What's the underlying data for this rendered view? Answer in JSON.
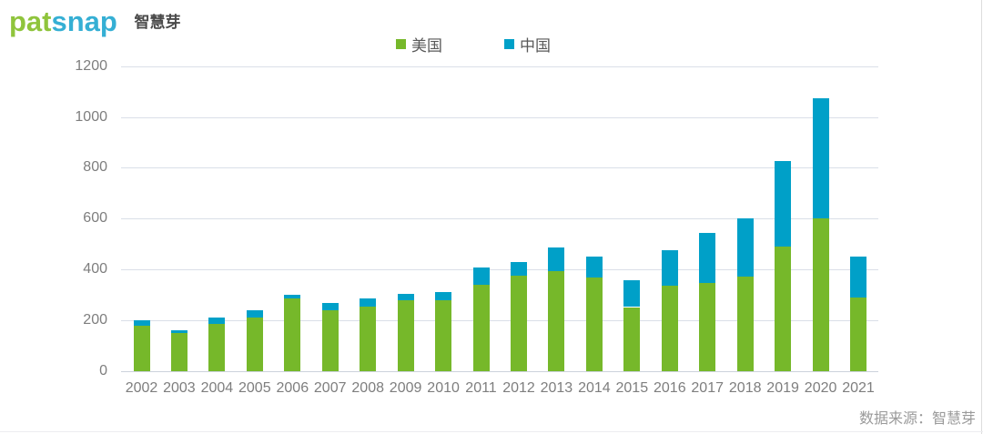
{
  "logo": {
    "part_green": "pat",
    "part_blue": "snap",
    "suffix": "智慧芽"
  },
  "colors": {
    "us_green": "#76B82A",
    "cn_blue": "#00A0C8",
    "logo_green": "#8FC43C",
    "logo_blue": "#35AFD4",
    "grid": "#dadfe8",
    "axis_text": "#7e7e7e",
    "legend_text": "#595959",
    "footer_text": "#9a9a9a"
  },
  "legend": {
    "items": [
      {
        "label": "美国",
        "color": "#76B82A"
      },
      {
        "label": "中国",
        "color": "#00A0C8"
      }
    ]
  },
  "chart_data": {
    "type": "bar",
    "stacked": true,
    "title": "",
    "xlabel": "",
    "ylabel": "",
    "categories": [
      "2002",
      "2003",
      "2004",
      "2005",
      "2006",
      "2007",
      "2008",
      "2009",
      "2010",
      "2011",
      "2012",
      "2013",
      "2014",
      "2015",
      "2016",
      "2017",
      "2018",
      "2019",
      "2020",
      "2021"
    ],
    "series": [
      {
        "name": "美国",
        "color": "#76B82A",
        "values": [
          180,
          150,
          185,
          210,
          285,
          240,
          255,
          278,
          278,
          340,
          377,
          395,
          370,
          252,
          337,
          348,
          372,
          490,
          600,
          290
        ]
      },
      {
        "name": "中国",
        "color": "#00A0C8",
        "values": [
          20,
          10,
          25,
          30,
          15,
          28,
          32,
          27,
          32,
          67,
          53,
          93,
          80,
          105,
          140,
          197,
          228,
          335,
          475,
          160
        ]
      }
    ],
    "totals": [
      200,
      160,
      210,
      240,
      300,
      268,
      287,
      305,
      310,
      407,
      430,
      488,
      450,
      357,
      477,
      545,
      600,
      825,
      1075,
      450
    ],
    "ylim": [
      0,
      1200
    ],
    "yticks": [
      0,
      200,
      400,
      600,
      800,
      1000,
      1200
    ],
    "grid": true,
    "legend_position": "top-center"
  },
  "footer": {
    "source_label": "数据来源：智慧芽"
  }
}
